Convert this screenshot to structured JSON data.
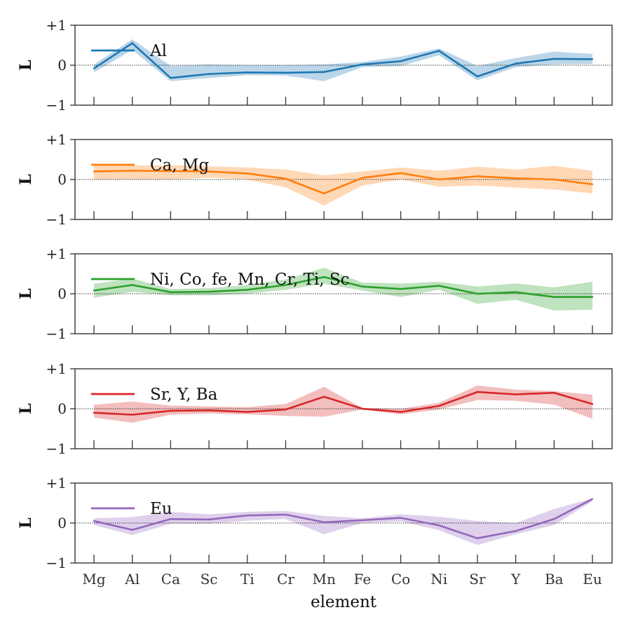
{
  "chart_data": {
    "type": "line",
    "categories": [
      "Mg",
      "Al",
      "Ca",
      "Sc",
      "Ti",
      "Cr",
      "Mn",
      "Fe",
      "Co",
      "Ni",
      "Sr",
      "Y",
      "Ba",
      "Eu"
    ],
    "xlabel": "element",
    "ylabel": "L",
    "ylim": [
      -1,
      1
    ],
    "yticks": [
      -1,
      0,
      1
    ],
    "ytick_labels": [
      "−1",
      "0",
      "+1"
    ],
    "zero_line": true,
    "legend_placement": "top-left",
    "panels": [
      {
        "name": "Al",
        "color": "#1f77b4",
        "values": [
          -0.08,
          0.55,
          -0.32,
          -0.22,
          -0.18,
          -0.19,
          -0.17,
          0.02,
          0.1,
          0.36,
          -0.28,
          0.04,
          0.16,
          0.15
        ],
        "band_upper": [
          0.02,
          0.65,
          -0.02,
          0.02,
          0.0,
          0.0,
          0.02,
          0.08,
          0.22,
          0.42,
          -0.02,
          0.18,
          0.34,
          0.28
        ],
        "band_lower": [
          -0.18,
          0.38,
          -0.4,
          -0.32,
          -0.25,
          -0.26,
          -0.4,
          -0.05,
          -0.02,
          0.25,
          -0.38,
          -0.05,
          0.02,
          0.03
        ]
      },
      {
        "name": "Ca, Mg",
        "color": "#ff7f0e",
        "values": [
          0.2,
          0.22,
          0.21,
          0.2,
          0.15,
          0.02,
          -0.35,
          0.04,
          0.16,
          0.0,
          0.08,
          0.03,
          0.0,
          -0.12
        ],
        "band_upper": [
          0.35,
          0.35,
          0.36,
          0.33,
          0.3,
          0.25,
          0.1,
          0.2,
          0.3,
          0.22,
          0.32,
          0.25,
          0.34,
          0.22
        ],
        "band_lower": [
          0.0,
          0.0,
          0.0,
          0.05,
          0.0,
          -0.2,
          -0.65,
          -0.15,
          0.0,
          -0.18,
          -0.15,
          -0.2,
          -0.25,
          -0.35
        ]
      },
      {
        "name": "Ni, Co, fe, Mn, Cr, Ti, Sc",
        "color": "#2ca02c",
        "values": [
          0.08,
          0.22,
          0.04,
          0.05,
          0.1,
          0.22,
          0.42,
          0.18,
          0.12,
          0.2,
          0.0,
          0.04,
          -0.08,
          -0.08
        ],
        "band_upper": [
          0.25,
          0.38,
          0.12,
          0.14,
          0.22,
          0.36,
          0.65,
          0.28,
          0.26,
          0.3,
          0.18,
          0.26,
          0.16,
          0.3
        ],
        "band_lower": [
          -0.1,
          0.05,
          -0.04,
          -0.04,
          0.0,
          0.1,
          0.25,
          0.08,
          -0.08,
          0.1,
          -0.25,
          -0.15,
          -0.42,
          -0.4
        ]
      },
      {
        "name": "Sr, Y, Ba",
        "color": "#d62728",
        "values": [
          -0.1,
          -0.15,
          -0.05,
          -0.04,
          -0.08,
          -0.02,
          0.3,
          0.0,
          -0.08,
          0.07,
          0.42,
          0.36,
          0.4,
          0.12
        ],
        "band_upper": [
          0.1,
          0.18,
          0.08,
          0.06,
          0.04,
          0.12,
          0.55,
          0.02,
          0.0,
          0.15,
          0.58,
          0.48,
          0.44,
          0.35
        ],
        "band_lower": [
          -0.22,
          -0.35,
          -0.15,
          -0.12,
          -0.14,
          -0.18,
          -0.2,
          -0.02,
          -0.14,
          -0.02,
          0.22,
          0.2,
          0.1,
          -0.25
        ]
      },
      {
        "name": "Eu",
        "color": "#9467bd",
        "values": [
          0.05,
          -0.17,
          0.1,
          0.09,
          0.19,
          0.21,
          0.02,
          0.07,
          0.13,
          -0.06,
          -0.38,
          -0.2,
          0.1,
          0.6
        ],
        "band_upper": [
          0.12,
          0.15,
          0.28,
          0.22,
          0.28,
          0.3,
          0.18,
          0.12,
          0.22,
          0.16,
          0.05,
          0.0,
          0.35,
          0.62
        ],
        "band_lower": [
          -0.05,
          -0.3,
          -0.02,
          -0.02,
          0.06,
          0.1,
          -0.28,
          0.0,
          0.04,
          -0.18,
          -0.55,
          -0.28,
          -0.05,
          0.55
        ]
      }
    ]
  }
}
